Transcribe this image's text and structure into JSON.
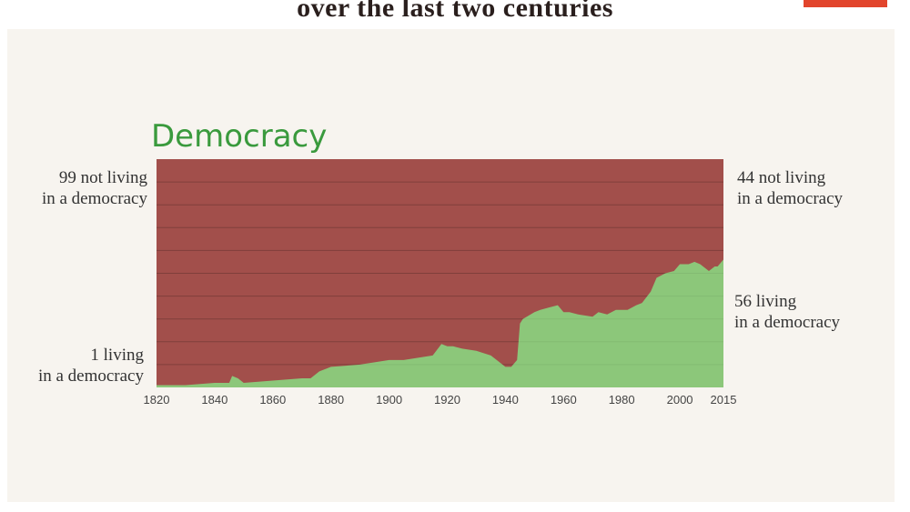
{
  "title": "over the last two centuries",
  "colors": {
    "accent": "#e2452c",
    "not_democracy": "#a24f4b",
    "democracy": "#8cc77a",
    "heading": "#3a9a3d"
  },
  "labels": {
    "left_top_line1": "99 not living",
    "left_top_line2": "in a democracy",
    "left_bottom_line1": "1 living",
    "left_bottom_line2": "in a democracy",
    "right_top_line1": "44 not living",
    "right_top_line2": "in a democracy",
    "right_mid_line1": "56 living",
    "right_mid_line2": "in a democracy"
  },
  "chart_data": {
    "type": "area",
    "title": "Democracy",
    "xlabel": "",
    "ylabel": "",
    "xlim": [
      1820,
      2015
    ],
    "ylim": [
      0,
      100
    ],
    "xticks": [
      1820,
      1840,
      1860,
      1880,
      1900,
      1920,
      1940,
      1960,
      1980,
      2000,
      2015
    ],
    "grid": true,
    "series": [
      {
        "values_x": [
          1820,
          1830,
          1840,
          1845,
          1846,
          1848,
          1850,
          1860,
          1870,
          1873,
          1876,
          1880,
          1890,
          1895,
          1900,
          1905,
          1910,
          1915,
          1918,
          1920,
          1922,
          1925,
          1930,
          1935,
          1939,
          1940,
          1942,
          1944,
          1945,
          1946,
          1950,
          1952,
          1955,
          1958,
          1960,
          1962,
          1965,
          1970,
          1972,
          1975,
          1978,
          1980,
          1982,
          1985,
          1987,
          1990,
          1992,
          1995,
          1998,
          2000,
          2003,
          2005,
          2007,
          2010,
          2012,
          2013,
          2015
        ],
        "values_y": [
          1,
          1,
          2,
          2,
          5,
          4,
          2,
          3,
          4,
          4,
          7,
          9,
          10,
          11,
          12,
          12,
          13,
          14,
          19,
          18,
          18,
          17,
          16,
          14,
          10,
          9,
          9,
          12,
          28,
          30,
          33,
          34,
          35,
          36,
          33,
          33,
          32,
          31,
          33,
          32,
          34,
          34,
          34,
          36,
          37,
          42,
          48,
          50,
          51,
          54,
          54,
          55,
          54,
          51,
          53,
          53,
          56
        ]
      }
    ]
  }
}
